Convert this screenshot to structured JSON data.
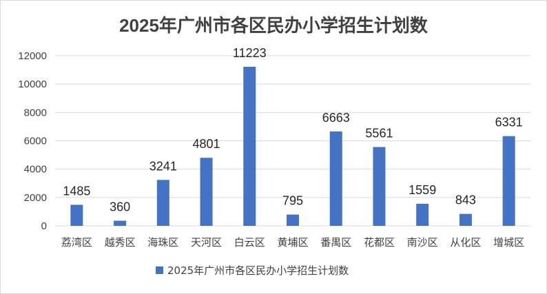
{
  "chart_data": {
    "type": "bar",
    "title": "2025年广州市各区民办小学招生计划数",
    "categories": [
      "荔湾区",
      "越秀区",
      "海珠区",
      "天河区",
      "白云区",
      "黄埔区",
      "番禺区",
      "花都区",
      "南沙区",
      "从化区",
      "增城区"
    ],
    "series": [
      {
        "name": "2025年广州市各区民办小学招生计划数",
        "values": [
          1485,
          360,
          3241,
          4801,
          11223,
          795,
          6663,
          5561,
          1559,
          843,
          6331
        ],
        "color": "#4472c4"
      }
    ],
    "ylim": [
      0,
      12000
    ],
    "yticks": [
      0,
      2000,
      4000,
      6000,
      8000,
      10000,
      12000
    ],
    "grid": true,
    "legend_position": "bottom",
    "data_labels": true
  }
}
